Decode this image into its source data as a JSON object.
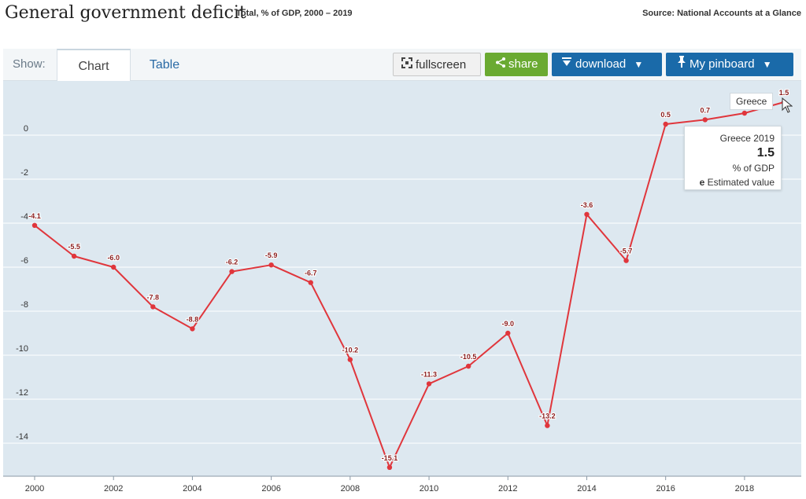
{
  "header": {
    "title": "General government deficit",
    "subtitle": "Total, % of GDP, 2000 – 2019",
    "source": "Source: National Accounts at a Glance"
  },
  "toolbar": {
    "show_label": "Show:",
    "tabs": [
      {
        "label": "Chart"
      },
      {
        "label": "Table"
      }
    ],
    "fullscreen_label": "fullscreen",
    "share_label": "share",
    "download_label": "download",
    "pinboard_label": "My pinboard",
    "dropdown_glyph": "▼"
  },
  "tooltip": {
    "title": "Greece 2019",
    "value": "1.5",
    "unit": "% of GDP",
    "note_key": "e",
    "note": "Estimated value"
  },
  "series_flag": "Greece",
  "chart_data": {
    "type": "line",
    "x": [
      2000,
      2001,
      2002,
      2003,
      2004,
      2005,
      2006,
      2007,
      2008,
      2009,
      2010,
      2011,
      2012,
      2013,
      2014,
      2015,
      2016,
      2017,
      2018,
      2019
    ],
    "series": [
      {
        "name": "Greece",
        "color": "#e0363c",
        "values": [
          -4.1,
          -5.5,
          -6.0,
          -7.8,
          -8.8,
          -6.2,
          -5.9,
          -6.7,
          -10.2,
          -15.1,
          -11.3,
          -10.5,
          -9.0,
          -13.2,
          -3.6,
          -5.7,
          0.5,
          0.7,
          1.0,
          1.5
        ],
        "labels": [
          "-4.1",
          "-5.5",
          "-6.0",
          "-7.8",
          "-8.8",
          "-6.2",
          "-5.9",
          "-6.7",
          "-10.2",
          "-15.1",
          "-11.3",
          "-10.5",
          "-9.0",
          "-13.2",
          "-3.6",
          "-5.7",
          "0.5",
          "0.7",
          "",
          "1.5"
        ]
      }
    ],
    "xticks": [
      "2000",
      "2002",
      "2004",
      "2006",
      "2008",
      "2010",
      "2012",
      "2014",
      "2016",
      "2018"
    ],
    "yticks": [
      "0",
      "-2",
      "-4",
      "-6",
      "-8",
      "-10",
      "-12",
      "-14"
    ],
    "ytick_values": [
      0,
      -2,
      -4,
      -6,
      -8,
      -10,
      -12,
      -14
    ],
    "xlim": [
      2000,
      2019
    ],
    "ylim": [
      -15.5,
      2.0
    ],
    "grid": true
  }
}
